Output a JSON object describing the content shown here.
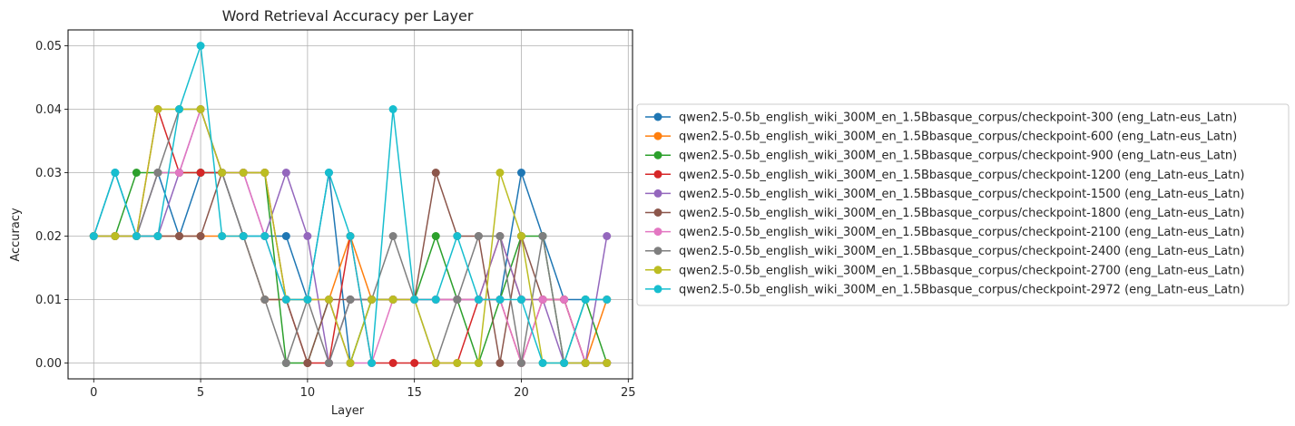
{
  "chart_data": {
    "type": "line",
    "title": "Word Retrieval Accuracy per Layer",
    "xlabel": "Layer",
    "ylabel": "Accuracy",
    "xlim": [
      -1.2,
      25.2
    ],
    "ylim": [
      -0.0025,
      0.0525
    ],
    "xticks": [
      "0",
      "5",
      "10",
      "15",
      "20",
      "25"
    ],
    "yticks": [
      "0.00",
      "0.01",
      "0.02",
      "0.03",
      "0.04",
      "0.05"
    ],
    "grid": true,
    "legend_position": "center-right outside",
    "x": [
      0,
      1,
      2,
      3,
      4,
      5,
      6,
      7,
      8,
      9,
      10,
      11,
      12,
      13,
      14,
      15,
      16,
      17,
      18,
      19,
      20,
      21,
      22,
      23,
      24
    ],
    "series": [
      {
        "name": "qwen2.5-0.5b_english_wiki_300M_en_1.5Bbasque_corpus/checkpoint-300 (eng_Latn-eus_Latn)",
        "color": "#1f77b4",
        "values": [
          0.02,
          0.03,
          0.02,
          0.03,
          0.02,
          0.03,
          0.03,
          0.02,
          0.02,
          0.02,
          0.01,
          0.03,
          0.0,
          0.01,
          0.01,
          0.01,
          0.01,
          0.01,
          0.01,
          0.01,
          0.03,
          0.02,
          0.01,
          0.01,
          0.01
        ]
      },
      {
        "name": "qwen2.5-0.5b_english_wiki_300M_en_1.5Bbasque_corpus/checkpoint-600 (eng_Latn-eus_Latn)",
        "color": "#ff7f0e",
        "values": [
          0.02,
          0.02,
          0.02,
          0.02,
          0.02,
          0.02,
          0.02,
          0.02,
          0.01,
          0.01,
          0.01,
          0.01,
          0.02,
          0.01,
          0.01,
          0.01,
          0.01,
          0.01,
          0.01,
          0.02,
          0.01,
          0.01,
          0.01,
          0.0,
          0.01
        ]
      },
      {
        "name": "qwen2.5-0.5b_english_wiki_300M_en_1.5Bbasque_corpus/checkpoint-900 (eng_Latn-eus_Latn)",
        "color": "#2ca02c",
        "values": [
          0.02,
          0.02,
          0.03,
          0.03,
          0.03,
          0.03,
          0.03,
          0.03,
          0.03,
          0.0,
          0.0,
          0.01,
          0.0,
          0.01,
          0.01,
          0.01,
          0.02,
          0.01,
          0.0,
          0.01,
          0.02,
          0.02,
          0.0,
          0.01,
          0.0
        ]
      },
      {
        "name": "qwen2.5-0.5b_english_wiki_300M_en_1.5Bbasque_corpus/checkpoint-1200 (eng_Latn-eus_Latn)",
        "color": "#d62728",
        "values": [
          0.02,
          0.02,
          0.02,
          0.04,
          0.03,
          0.03,
          0.03,
          0.03,
          0.03,
          0.01,
          0.0,
          0.0,
          0.02,
          0.0,
          0.0,
          0.0,
          0.0,
          0.0,
          0.01,
          0.01,
          0.0,
          0.01,
          0.01,
          0.0,
          0.0
        ]
      },
      {
        "name": "qwen2.5-0.5b_english_wiki_300M_en_1.5Bbasque_corpus/checkpoint-1500 (eng_Latn-eus_Latn)",
        "color": "#9467bd",
        "values": [
          0.02,
          0.02,
          0.02,
          0.02,
          0.03,
          0.04,
          0.03,
          0.03,
          0.02,
          0.03,
          0.02,
          0.0,
          0.01,
          0.01,
          0.01,
          0.01,
          0.01,
          0.01,
          0.01,
          0.02,
          0.01,
          0.01,
          0.0,
          0.0,
          0.02
        ]
      },
      {
        "name": "qwen2.5-0.5b_english_wiki_300M_en_1.5Bbasque_corpus/checkpoint-1800 (eng_Latn-eus_Latn)",
        "color": "#8c564b",
        "values": [
          0.02,
          0.02,
          0.02,
          0.02,
          0.02,
          0.02,
          0.03,
          0.02,
          0.01,
          0.01,
          0.0,
          0.01,
          0.01,
          0.01,
          0.01,
          0.01,
          0.03,
          0.02,
          0.02,
          0.0,
          0.02,
          0.01,
          0.01,
          0.0,
          0.0
        ]
      },
      {
        "name": "qwen2.5-0.5b_english_wiki_300M_en_1.5Bbasque_corpus/checkpoint-2100 (eng_Latn-eus_Latn)",
        "color": "#e377c2",
        "values": [
          0.02,
          0.02,
          0.02,
          0.03,
          0.03,
          0.04,
          0.03,
          0.03,
          0.02,
          0.01,
          0.01,
          0.01,
          0.0,
          0.0,
          0.01,
          0.01,
          0.01,
          0.01,
          0.01,
          0.01,
          0.0,
          0.01,
          0.01,
          0.0,
          0.0
        ]
      },
      {
        "name": "qwen2.5-0.5b_english_wiki_300M_en_1.5Bbasque_corpus/checkpoint-2400 (eng_Latn-eus_Latn)",
        "color": "#7f7f7f",
        "values": [
          0.02,
          0.02,
          0.02,
          0.03,
          0.04,
          0.04,
          0.03,
          0.02,
          0.01,
          0.0,
          0.01,
          0.0,
          0.01,
          0.01,
          0.02,
          0.01,
          0.0,
          0.01,
          0.02,
          0.02,
          0.0,
          0.02,
          0.0,
          0.0,
          0.0
        ]
      },
      {
        "name": "qwen2.5-0.5b_english_wiki_300M_en_1.5Bbasque_corpus/checkpoint-2700 (eng_Latn-eus_Latn)",
        "color": "#bcbd22",
        "values": [
          0.02,
          0.02,
          0.02,
          0.04,
          0.04,
          0.04,
          0.03,
          0.03,
          0.03,
          0.01,
          0.01,
          0.01,
          0.0,
          0.01,
          0.01,
          0.01,
          0.0,
          0.0,
          0.0,
          0.03,
          0.02,
          0.0,
          0.0,
          0.0,
          0.0
        ]
      },
      {
        "name": "qwen2.5-0.5b_english_wiki_300M_en_1.5Bbasque_corpus/checkpoint-2972 (eng_Latn-eus_Latn)",
        "color": "#17becf",
        "values": [
          0.02,
          0.03,
          0.02,
          0.02,
          0.04,
          0.05,
          0.02,
          0.02,
          0.02,
          0.01,
          0.01,
          0.03,
          0.02,
          0.0,
          0.04,
          0.01,
          0.01,
          0.02,
          0.01,
          0.01,
          0.01,
          0.0,
          0.0,
          0.01,
          0.01
        ]
      }
    ]
  }
}
